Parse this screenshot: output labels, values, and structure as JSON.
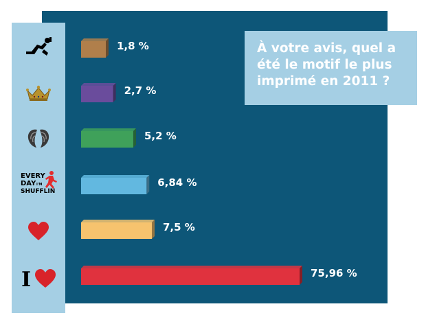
{
  "question": "À votre avis, quel a été le motif le plus imprimé en 2011 ?",
  "colors": {
    "background": "#0d5678",
    "sidebar": "#a5cfe4",
    "text": "#ffffff"
  },
  "chart_data": {
    "type": "bar",
    "orientation": "horizontal",
    "title": "À votre avis, quel a été le motif le plus imprimé en 2011 ?",
    "categories": [
      "dude-drinking-icon",
      "crown-icon",
      "angel-wings-icon",
      "everyday-shufflin-icon",
      "heart-icon",
      "i-love-icon"
    ],
    "values": [
      1.8,
      2.7,
      5.2,
      6.84,
      7.5,
      75.96
    ],
    "labels": [
      "1,8 %",
      "2,7 %",
      "5,2 %",
      "6,84 %",
      "7,5 %",
      "75,96 %"
    ],
    "bar_colors": [
      "#b07f4b",
      "#6a4c9c",
      "#3fa15a",
      "#62b8e0",
      "#f6c36e",
      "#e0323e"
    ],
    "unit": "%",
    "xlabel": "",
    "ylabel": "",
    "grid": false,
    "legend": "none"
  },
  "shufflin": {
    "line1": "EVERY",
    "line2": "DAY",
    "line3": "SHUFFLIN",
    "small": "I'M"
  },
  "i_love": {
    "letter": "I"
  }
}
